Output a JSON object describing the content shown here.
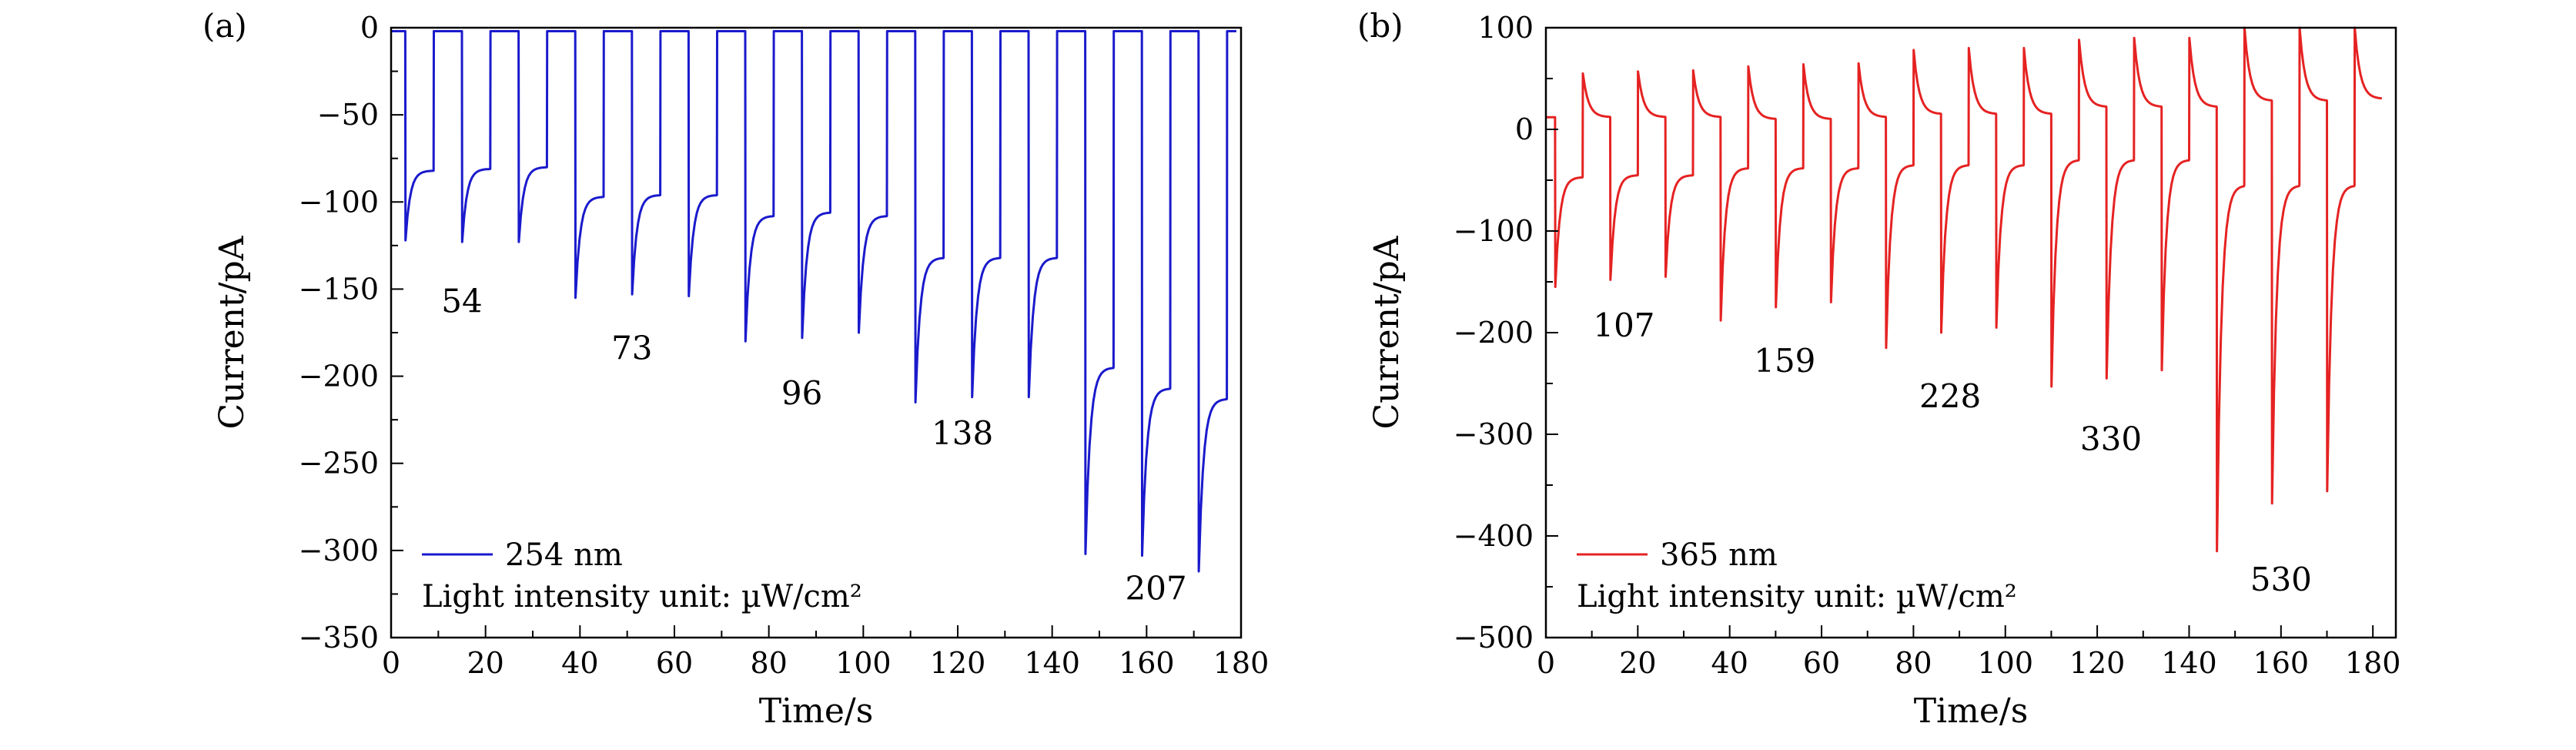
{
  "chart_data": [
    {
      "type": "line",
      "panel_label": "(a)",
      "xlabel": "Time/s",
      "ylabel": "Current/pA",
      "xlim": [
        0,
        180
      ],
      "ylim": [
        -350,
        0
      ],
      "x_ticks": [
        0,
        20,
        40,
        60,
        80,
        100,
        120,
        140,
        160,
        180
      ],
      "y_ticks": [
        0,
        -50,
        -100,
        -150,
        -200,
        -250,
        -300,
        -350
      ],
      "y_tick_labels": [
        "0",
        "−50",
        "−100",
        "−150",
        "−200",
        "−250",
        "−300",
        "−350"
      ],
      "grid": false,
      "legend_placement": "bottom-left",
      "series": [
        {
          "name": "254 nm",
          "color": "#1a1acc",
          "period_s": 12,
          "on_duration_s": 6,
          "baseline_pA": -2,
          "pulses": [
            {
              "t_on": 3,
              "peak": -122,
              "plateau": -82
            },
            {
              "t_on": 15,
              "peak": -123,
              "plateau": -81
            },
            {
              "t_on": 27,
              "peak": -123,
              "plateau": -80
            },
            {
              "t_on": 39,
              "peak": -155,
              "plateau": -97
            },
            {
              "t_on": 51,
              "peak": -153,
              "plateau": -96
            },
            {
              "t_on": 63,
              "peak": -154,
              "plateau": -96
            },
            {
              "t_on": 75,
              "peak": -180,
              "plateau": -108
            },
            {
              "t_on": 87,
              "peak": -178,
              "plateau": -106
            },
            {
              "t_on": 99,
              "peak": -175,
              "plateau": -108
            },
            {
              "t_on": 111,
              "peak": -215,
              "plateau": -132
            },
            {
              "t_on": 123,
              "peak": -212,
              "plateau": -132
            },
            {
              "t_on": 135,
              "peak": -212,
              "plateau": -132
            },
            {
              "t_on": 147,
              "peak": -302,
              "plateau": -195
            },
            {
              "t_on": 159,
              "peak": -303,
              "plateau": -207
            },
            {
              "t_on": 171,
              "peak": -312,
              "plateau": -213
            }
          ]
        }
      ],
      "annotations": [
        {
          "text": "54",
          "x": 15,
          "y": -157
        },
        {
          "text": "73",
          "x": 51,
          "y": -184
        },
        {
          "text": "96",
          "x": 87,
          "y": -210
        },
        {
          "text": "138",
          "x": 121,
          "y": -233
        },
        {
          "text": "207",
          "x": 162,
          "y": -322
        }
      ],
      "legend_note": "Light intensity unit: µW/cm²"
    },
    {
      "type": "line",
      "panel_label": "(b)",
      "xlabel": "Time/s",
      "ylabel": "Current/pA",
      "xlim": [
        0,
        185
      ],
      "ylim": [
        -500,
        100
      ],
      "x_ticks": [
        0,
        20,
        40,
        60,
        80,
        100,
        120,
        140,
        160,
        180
      ],
      "y_ticks": [
        100,
        0,
        -100,
        -200,
        -300,
        -400,
        -500
      ],
      "y_tick_labels": [
        "100",
        "0",
        "−100",
        "−200",
        "−300",
        "−400",
        "−500"
      ],
      "grid": false,
      "legend_placement": "bottom-left",
      "series": [
        {
          "name": "365 nm",
          "color": "#e52222",
          "period_s": 12,
          "on_duration_s": 6,
          "pulses": [
            {
              "t_on": 2,
              "peak": -155,
              "plateau": -47,
              "off_peak": 55,
              "off_plateau": 12
            },
            {
              "t_on": 14,
              "peak": -148,
              "plateau": -45,
              "off_peak": 57,
              "off_plateau": 12
            },
            {
              "t_on": 26,
              "peak": -145,
              "plateau": -45,
              "off_peak": 58,
              "off_plateau": 12
            },
            {
              "t_on": 38,
              "peak": -188,
              "plateau": -38,
              "off_peak": 62,
              "off_plateau": 10
            },
            {
              "t_on": 50,
              "peak": -175,
              "plateau": -38,
              "off_peak": 64,
              "off_plateau": 10
            },
            {
              "t_on": 62,
              "peak": -170,
              "plateau": -38,
              "off_peak": 65,
              "off_plateau": 12
            },
            {
              "t_on": 74,
              "peak": -215,
              "plateau": -35,
              "off_peak": 78,
              "off_plateau": 15
            },
            {
              "t_on": 86,
              "peak": -200,
              "plateau": -35,
              "off_peak": 80,
              "off_plateau": 15
            },
            {
              "t_on": 98,
              "peak": -195,
              "plateau": -35,
              "off_peak": 80,
              "off_plateau": 15
            },
            {
              "t_on": 110,
              "peak": -253,
              "plateau": -30,
              "off_peak": 88,
              "off_plateau": 22
            },
            {
              "t_on": 122,
              "peak": -245,
              "plateau": -30,
              "off_peak": 90,
              "off_plateau": 22
            },
            {
              "t_on": 134,
              "peak": -237,
              "plateau": -30,
              "off_peak": 90,
              "off_plateau": 22
            },
            {
              "t_on": 146,
              "peak": -415,
              "plateau": -55,
              "off_peak": 100,
              "off_plateau": 28
            },
            {
              "t_on": 158,
              "peak": -368,
              "plateau": -55,
              "off_peak": 100,
              "off_plateau": 28
            },
            {
              "t_on": 170,
              "peak": -356,
              "plateau": -55,
              "off_peak": 100,
              "off_plateau": 30
            }
          ]
        }
      ],
      "annotations": [
        {
          "text": "107",
          "x": 17,
          "y": -193
        },
        {
          "text": "159",
          "x": 52,
          "y": -228
        },
        {
          "text": "228",
          "x": 88,
          "y": -263
        },
        {
          "text": "330",
          "x": 123,
          "y": -305
        },
        {
          "text": "530",
          "x": 160,
          "y": -443
        }
      ],
      "legend_note": "Light intensity unit: µW/cm²"
    }
  ]
}
